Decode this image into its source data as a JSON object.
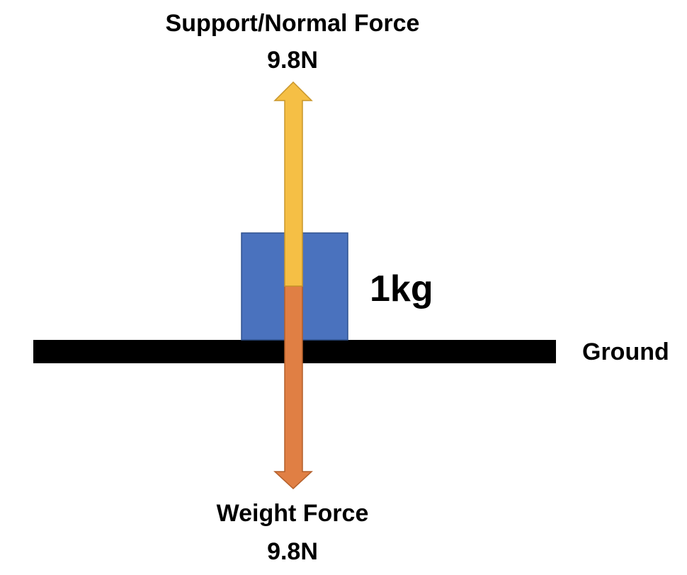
{
  "diagram": {
    "mass": {
      "label": "1kg",
      "color": "#4A72BE",
      "border_color": "#2F528F"
    },
    "ground": {
      "label": "Ground",
      "color": "#000000"
    },
    "support_force": {
      "name": "Support/Normal Force",
      "value": "9.8N",
      "direction": "up",
      "color": "#F5BF45",
      "border_color": "#C9962A"
    },
    "weight_force": {
      "name": "Weight Force",
      "value": "9.8N",
      "direction": "down",
      "color": "#E07F44",
      "border_color": "#B35F2A"
    }
  }
}
